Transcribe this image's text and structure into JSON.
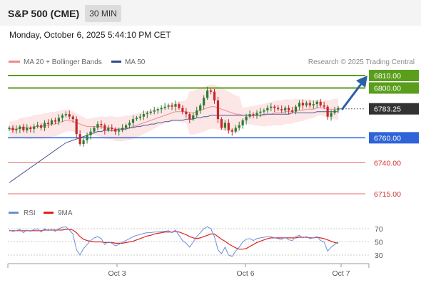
{
  "header": {
    "title": "S&P 500 (CME)",
    "timeframe": "30 MIN"
  },
  "datetime": "Monday, October 6, 2025 5:44:10 PM CET",
  "legend": {
    "ma20": "MA 20 + Bollinger Bands",
    "ma50": "MA 50",
    "credit": "Research © 2025 Trading Central"
  },
  "colors": {
    "resistance": "#5a9e1c",
    "support": "#2f63d8",
    "target": "#ec6b6b",
    "current": "#333333",
    "ma20": "#f08a8a",
    "ma50": "#4a5a9a",
    "bollinger": "#fbe2e2",
    "rsi": "#6a8fd8",
    "rsi_ma": "#e02020",
    "arrow": "#2b5fa8"
  },
  "chart_data": [
    {
      "type": "candlestick",
      "title": "",
      "ylim": [
        6705,
        6820
      ],
      "x_ticks": [
        "Oct 3",
        "Oct 6",
        "Oct 7"
      ],
      "levels": [
        {
          "label": "6810.00",
          "value": 6810,
          "kind": "resistance"
        },
        {
          "label": "6800.00",
          "value": 6800,
          "kind": "resistance"
        },
        {
          "label": "6783.25",
          "value": 6783.25,
          "kind": "current"
        },
        {
          "label": "6760.00",
          "value": 6760,
          "kind": "support"
        },
        {
          "label": "6740.00",
          "value": 6740,
          "kind": "target"
        },
        {
          "label": "6715.00",
          "value": 6715,
          "kind": "target"
        }
      ],
      "close": [
        6768,
        6766,
        6767,
        6769,
        6766,
        6768,
        6767,
        6769,
        6770,
        6768,
        6772,
        6771,
        6774,
        6773,
        6776,
        6778,
        6779,
        6777,
        6775,
        6763,
        6755,
        6758,
        6762,
        6765,
        6768,
        6771,
        6770,
        6766,
        6768,
        6767,
        6765,
        6766,
        6768,
        6770,
        6772,
        6775,
        6776,
        6777,
        6779,
        6780,
        6781,
        6782,
        6783,
        6784,
        6785,
        6786,
        6785,
        6787,
        6784,
        6781,
        6779,
        6775,
        6778,
        6782,
        6786,
        6792,
        6798,
        6797,
        6790,
        6775,
        6768,
        6772,
        6766,
        6765,
        6768,
        6770,
        6774,
        6777,
        6779,
        6778,
        6780,
        6781,
        6782,
        6784,
        6785,
        6784,
        6783,
        6782,
        6784,
        6782,
        6781,
        6785,
        6788,
        6786,
        6788,
        6786,
        6787,
        6789,
        6786,
        6785,
        6777,
        6780,
        6782,
        6784
      ],
      "series": [
        {
          "name": "MA 20",
          "values": [
            6767,
            6767,
            6767,
            6768,
            6768,
            6768,
            6768,
            6769,
            6769,
            6769,
            6770,
            6770,
            6771,
            6771,
            6772,
            6773,
            6774,
            6774,
            6773,
            6772,
            6771,
            6770,
            6769,
            6769,
            6769,
            6769,
            6769,
            6768,
            6768,
            6768,
            6767,
            6767,
            6767,
            6768,
            6768,
            6769,
            6770,
            6771,
            6772,
            6773,
            6774,
            6775,
            6776,
            6777,
            6778,
            6779,
            6780,
            6781,
            6781,
            6781,
            6781,
            6780,
            6780,
            6781,
            6782,
            6783,
            6784,
            6785,
            6785,
            6784,
            6783,
            6782,
            6781,
            6780,
            6779,
            6779,
            6778,
            6778,
            6778,
            6778,
            6778,
            6778,
            6778,
            6779,
            6779,
            6780,
            6780,
            6780,
            6781,
            6781,
            6781,
            6782,
            6782,
            6782,
            6783,
            6783,
            6783,
            6784,
            6784,
            6784,
            6783,
            6783,
            6783,
            6783
          ]
        },
        {
          "name": "MA 50",
          "values": [
            6724,
            6726,
            6728,
            6730,
            6732,
            6734,
            6736,
            6738,
            6740,
            6742,
            6744,
            6746,
            6748,
            6750,
            6752,
            6754,
            6756,
            6757,
            6758,
            6759,
            6760,
            6761,
            6762,
            6763,
            6764,
            6765,
            6765,
            6766,
            6766,
            6766,
            6766,
            6767,
            6767,
            6767,
            6768,
            6768,
            6769,
            6769,
            6770,
            6770,
            6771,
            6771,
            6772,
            6772,
            6773,
            6773,
            6774,
            6774,
            6774,
            6774,
            6775,
            6775,
            6775,
            6776,
            6776,
            6777,
            6777,
            6778,
            6778,
            6778,
            6778,
            6778,
            6778,
            6778,
            6778,
            6778,
            6778,
            6778,
            6778,
            6778,
            6778,
            6778,
            6779,
            6779,
            6779,
            6779,
            6779,
            6779,
            6779,
            6779,
            6780,
            6780,
            6780,
            6780,
            6780,
            6780,
            6780,
            6781,
            6781,
            6781,
            6781,
            6781,
            6781,
            6781
          ]
        }
      ]
    },
    {
      "type": "line",
      "title": "",
      "ylim": [
        20,
        80
      ],
      "y_ticks": [
        "70",
        "50",
        "30"
      ],
      "series": [
        {
          "name": "RSI",
          "values": [
            68,
            66,
            67,
            69,
            64,
            68,
            66,
            69,
            70,
            65,
            70,
            67,
            69,
            66,
            70,
            72,
            73,
            68,
            62,
            38,
            30,
            40,
            46,
            52,
            56,
            58,
            55,
            46,
            50,
            48,
            44,
            46,
            50,
            52,
            55,
            58,
            60,
            61,
            63,
            64,
            64,
            65,
            65,
            66,
            66,
            67,
            64,
            68,
            60,
            52,
            48,
            42,
            50,
            58,
            64,
            70,
            73,
            70,
            58,
            38,
            32,
            42,
            30,
            28,
            36,
            42,
            50,
            54,
            55,
            52,
            55,
            56,
            57,
            58,
            58,
            56,
            55,
            54,
            57,
            53,
            52,
            58,
            60,
            56,
            58,
            55,
            56,
            58,
            52,
            50,
            36,
            42,
            46,
            50
          ]
        },
        {
          "name": "9MA",
          "values": [
            67,
            67,
            67,
            67,
            67,
            67,
            67,
            67,
            67,
            67,
            68,
            68,
            68,
            68,
            68,
            68,
            69,
            69,
            68,
            64,
            58,
            54,
            52,
            51,
            50,
            50,
            50,
            49,
            49,
            49,
            48,
            48,
            48,
            49,
            50,
            51,
            53,
            55,
            57,
            59,
            60,
            62,
            63,
            64,
            65,
            65,
            65,
            66,
            65,
            63,
            61,
            58,
            56,
            55,
            56,
            58,
            60,
            62,
            62,
            58,
            54,
            51,
            47,
            44,
            41,
            39,
            39,
            40,
            43,
            46,
            49,
            51,
            53,
            55,
            56,
            56,
            56,
            56,
            56,
            56,
            56,
            56,
            57,
            57,
            57,
            56,
            56,
            57,
            56,
            55,
            53,
            51,
            49,
            48
          ]
        }
      ]
    }
  ]
}
